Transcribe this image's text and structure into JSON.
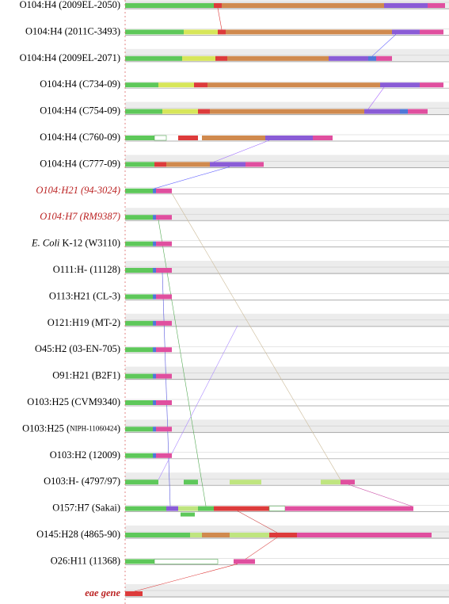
{
  "rows": [
    {
      "label": "O104:H4 (2009EL-2050)"
    },
    {
      "label": "O104:H4 (2011C-3493)"
    },
    {
      "label": "O104:H4 (2009EL-2071)"
    },
    {
      "label": "O104:H4 (C734-09)"
    },
    {
      "label": "O104:H4 (C754-09)"
    },
    {
      "label": "O104:H4 (C760-09)"
    },
    {
      "label": "O104:H4 (C777-09)"
    },
    {
      "label": "O104:H21 (94-3024)"
    },
    {
      "label": "O104:H7 (RM9387)"
    },
    {
      "label_italic": "E. Coli",
      "label": "K-12 (W3110)"
    },
    {
      "label": "O111:H- (11128)"
    },
    {
      "label": "O113:H21 (CL-3)"
    },
    {
      "label": "O121:H19 (MT-2)"
    },
    {
      "label": "O45:H2 (03-EN-705)"
    },
    {
      "label": "O91:H21 (B2F1)"
    },
    {
      "label": "O103:H25 (CVM9340)"
    },
    {
      "label": "O103:H25 (",
      "label_small": "NIPH-11060424",
      "label_end": ")"
    },
    {
      "label": "O103:H2 (12009)"
    },
    {
      "label": "O103:H- (4797/97)"
    },
    {
      "label": "O157:H7 (Sakai)"
    },
    {
      "label": "O145:H28 (4865-90)"
    },
    {
      "label": "O26:H11 (11368)"
    },
    {
      "label": "eae gene"
    }
  ]
}
